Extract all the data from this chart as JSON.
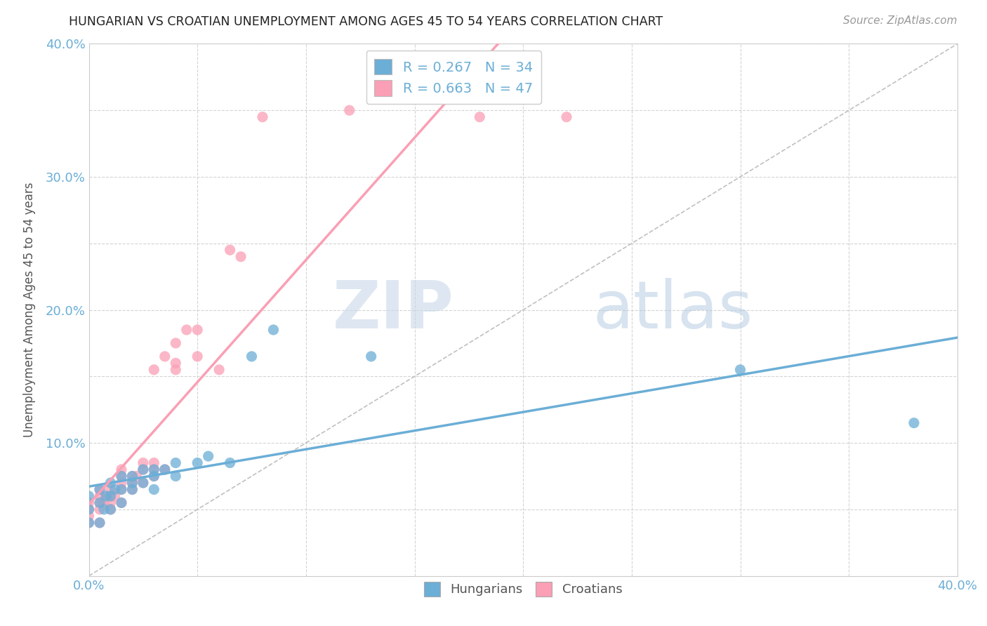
{
  "title": "HUNGARIAN VS CROATIAN UNEMPLOYMENT AMONG AGES 45 TO 54 YEARS CORRELATION CHART",
  "source": "Source: ZipAtlas.com",
  "ylabel": "Unemployment Among Ages 45 to 54 years",
  "xlim": [
    0.0,
    0.4
  ],
  "ylim": [
    0.0,
    0.4
  ],
  "xticks": [
    0.0,
    0.05,
    0.1,
    0.15,
    0.2,
    0.25,
    0.3,
    0.35,
    0.4
  ],
  "yticks": [
    0.0,
    0.05,
    0.1,
    0.15,
    0.2,
    0.25,
    0.3,
    0.35,
    0.4
  ],
  "xticklabels": [
    "0.0%",
    "",
    "",
    "",
    "",
    "",
    "",
    "",
    "40.0%"
  ],
  "yticklabels": [
    "",
    "",
    "10.0%",
    "",
    "20.0%",
    "",
    "30.0%",
    "",
    "40.0%"
  ],
  "hungarian_R": 0.267,
  "hungarian_N": 34,
  "croatian_R": 0.663,
  "croatian_N": 47,
  "hungarian_color": "#6baed6",
  "croatian_color": "#fa9fb5",
  "watermark_zip": "ZIP",
  "watermark_atlas": "atlas",
  "hungarian_x": [
    0.0,
    0.0,
    0.0,
    0.005,
    0.005,
    0.005,
    0.007,
    0.008,
    0.01,
    0.01,
    0.01,
    0.012,
    0.015,
    0.015,
    0.015,
    0.02,
    0.02,
    0.02,
    0.025,
    0.025,
    0.03,
    0.03,
    0.03,
    0.035,
    0.04,
    0.04,
    0.05,
    0.055,
    0.065,
    0.075,
    0.085,
    0.13,
    0.3,
    0.38
  ],
  "hungarian_y": [
    0.04,
    0.05,
    0.06,
    0.04,
    0.055,
    0.065,
    0.05,
    0.06,
    0.05,
    0.06,
    0.07,
    0.065,
    0.055,
    0.065,
    0.075,
    0.065,
    0.07,
    0.075,
    0.07,
    0.08,
    0.065,
    0.075,
    0.08,
    0.08,
    0.075,
    0.085,
    0.085,
    0.09,
    0.085,
    0.165,
    0.185,
    0.165,
    0.155,
    0.115
  ],
  "croatian_x": [
    0.0,
    0.0,
    0.0,
    0.0,
    0.005,
    0.005,
    0.005,
    0.005,
    0.005,
    0.007,
    0.008,
    0.01,
    0.01,
    0.01,
    0.01,
    0.012,
    0.015,
    0.015,
    0.015,
    0.015,
    0.015,
    0.02,
    0.02,
    0.02,
    0.022,
    0.025,
    0.025,
    0.025,
    0.03,
    0.03,
    0.03,
    0.03,
    0.035,
    0.035,
    0.04,
    0.04,
    0.04,
    0.045,
    0.05,
    0.05,
    0.06,
    0.065,
    0.07,
    0.08,
    0.12,
    0.18,
    0.22
  ],
  "croatian_y": [
    0.04,
    0.045,
    0.05,
    0.055,
    0.04,
    0.05,
    0.055,
    0.06,
    0.065,
    0.055,
    0.06,
    0.05,
    0.055,
    0.06,
    0.065,
    0.06,
    0.055,
    0.065,
    0.07,
    0.075,
    0.08,
    0.065,
    0.07,
    0.075,
    0.075,
    0.07,
    0.08,
    0.085,
    0.075,
    0.08,
    0.085,
    0.155,
    0.08,
    0.165,
    0.155,
    0.16,
    0.175,
    0.185,
    0.165,
    0.185,
    0.155,
    0.245,
    0.24,
    0.345,
    0.35,
    0.345,
    0.345
  ]
}
